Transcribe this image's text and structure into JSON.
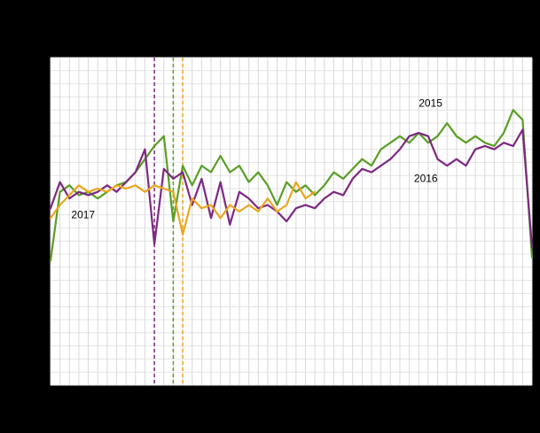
{
  "figure": {
    "background_color": "#000000",
    "plot_background_color": "#ffffff",
    "grid_color_vertical": "#d9d9d9",
    "grid_color_horizontal": "#e4e4e4"
  },
  "chart_data": {
    "type": "line",
    "title": "",
    "xlabel": "",
    "ylabel": "",
    "x_unit": "week",
    "x_range": [
      1,
      52
    ],
    "ylim": [
      0,
      100
    ],
    "grid": true,
    "legend_position": "none",
    "series": [
      {
        "name": "2015",
        "color": "#5a9e26",
        "x_start": 1,
        "values": [
          38,
          59,
          61,
          58,
          59,
          57,
          59,
          61,
          62,
          65,
          69,
          73,
          76,
          50,
          67,
          61,
          67,
          65,
          70,
          65,
          67,
          62,
          65,
          61,
          55,
          62,
          59,
          61,
          58,
          61,
          65,
          63,
          66,
          69,
          67,
          72,
          74,
          76,
          74,
          77,
          74,
          76,
          80,
          76,
          74,
          76,
          74,
          73,
          77,
          84,
          81,
          39
        ]
      },
      {
        "name": "2016",
        "color": "#7d2882",
        "x_start": 1,
        "values": [
          54,
          62,
          57,
          59,
          58,
          59,
          61,
          59,
          62,
          65,
          72,
          43,
          66,
          63,
          65,
          55,
          63,
          51,
          62,
          49,
          59,
          57,
          54,
          55,
          53,
          50,
          54,
          55,
          54,
          57,
          59,
          58,
          63,
          66,
          65,
          67,
          69,
          72,
          76,
          77,
          76,
          69,
          67,
          69,
          67,
          72,
          73,
          72,
          74,
          73,
          78,
          42
        ]
      },
      {
        "name": "2017",
        "color": "#eaa71e",
        "x_start": 1,
        "values": [
          51,
          55,
          58,
          61,
          59,
          60,
          59,
          61,
          60,
          61,
          59,
          61,
          60,
          59,
          46,
          57,
          54,
          55,
          51,
          55,
          53,
          55,
          53,
          57,
          53,
          55,
          62,
          57,
          59
        ]
      }
    ],
    "reference_lines": [
      {
        "week": 12,
        "color": "#7d2882",
        "style": "dashed"
      },
      {
        "week": 14,
        "color": "#5a9e26",
        "style": "dashed"
      },
      {
        "week": 15,
        "color": "#eaa71e",
        "style": "dashed"
      }
    ],
    "annotations": [
      {
        "label": "2015",
        "week": 40.0,
        "value": 85
      },
      {
        "label": "2016",
        "week": 39.5,
        "value": 62
      },
      {
        "label": "2017",
        "week": 3.2,
        "value": 51
      }
    ]
  }
}
